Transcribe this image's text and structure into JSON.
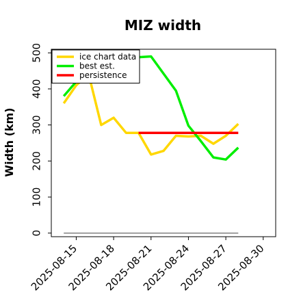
{
  "chart_data": {
    "type": "line",
    "title": "MIZ width",
    "xlabel": "",
    "ylabel": "Width (km)",
    "x_type": "date",
    "xlim": [
      "2025-08-13",
      "2025-08-31"
    ],
    "ylim": [
      -10,
      510
    ],
    "x_ticks": [
      "2025-08-15",
      "2025-08-18",
      "2025-08-21",
      "2025-08-24",
      "2025-08-27",
      "2025-08-30"
    ],
    "y_ticks": [
      0,
      100,
      200,
      300,
      400,
      500
    ],
    "grid": false,
    "legend_position": "top-left",
    "series": [
      {
        "name": "ice chart data",
        "color": "#ffd700",
        "points": [
          [
            "2025-08-14",
            360
          ],
          [
            "2025-08-15",
            410
          ],
          [
            "2025-08-16",
            440
          ],
          [
            "2025-08-17",
            300
          ],
          [
            "2025-08-18",
            320
          ],
          [
            "2025-08-19",
            278
          ],
          [
            "2025-08-20",
            278
          ],
          [
            "2025-08-21",
            218
          ],
          [
            "2025-08-22",
            228
          ],
          [
            "2025-08-23",
            270
          ],
          [
            "2025-08-24",
            268
          ],
          [
            "2025-08-25",
            270
          ],
          [
            "2025-08-26",
            248
          ],
          [
            "2025-08-27",
            270
          ],
          [
            "2025-08-28",
            303
          ]
        ]
      },
      {
        "name": "best est.",
        "color": "#00ee00",
        "points": [
          [
            "2025-08-14",
            380
          ],
          [
            "2025-08-15",
            420
          ],
          [
            "2025-08-16",
            440
          ],
          [
            "2025-08-20",
            488
          ],
          [
            "2025-08-21",
            490
          ],
          [
            "2025-08-23",
            395
          ],
          [
            "2025-08-24",
            298
          ],
          [
            "2025-08-25",
            255
          ],
          [
            "2025-08-26",
            210
          ],
          [
            "2025-08-27",
            204
          ],
          [
            "2025-08-28",
            237
          ]
        ]
      },
      {
        "name": "persistence",
        "color": "#ff0000",
        "points": [
          [
            "2025-08-20",
            278
          ],
          [
            "2025-08-28",
            278
          ]
        ]
      },
      {
        "name": "",
        "color": "#808080",
        "points": [
          [
            "2025-08-14",
            0
          ],
          [
            "2025-08-28",
            0
          ]
        ]
      }
    ]
  }
}
